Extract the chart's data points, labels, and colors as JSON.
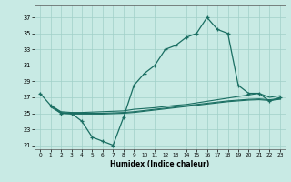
{
  "xlabel": "Humidex (Indice chaleur)",
  "xlim": [
    -0.5,
    23.5
  ],
  "ylim": [
    20.5,
    38.5
  ],
  "yticks": [
    21,
    23,
    25,
    27,
    29,
    31,
    33,
    35,
    37
  ],
  "xticks": [
    0,
    1,
    2,
    3,
    4,
    5,
    6,
    7,
    8,
    9,
    10,
    11,
    12,
    13,
    14,
    15,
    16,
    17,
    18,
    19,
    20,
    21,
    22,
    23
  ],
  "bg_color": "#c8eae4",
  "grid_color": "#a0d0c8",
  "line_color": "#1a6e62",
  "main_x": [
    0,
    1,
    2,
    3,
    4,
    5,
    6,
    7,
    8,
    9,
    10,
    11,
    12,
    13,
    14,
    15,
    16,
    17,
    18,
    19,
    20,
    21,
    22,
    23
  ],
  "main_y": [
    27.5,
    26.0,
    25.0,
    25.0,
    24.0,
    22.0,
    21.5,
    21.0,
    24.5,
    28.5,
    30.0,
    31.0,
    33.0,
    33.5,
    34.5,
    35.0,
    37.0,
    35.5,
    35.0,
    28.5,
    27.5,
    27.5,
    26.5,
    27.0
  ],
  "flat1_x": [
    1,
    2,
    3,
    4,
    5,
    6,
    7,
    8,
    9,
    10,
    11,
    12,
    13,
    14,
    15,
    16,
    17,
    18,
    19,
    20,
    21,
    22,
    23
  ],
  "flat1_y": [
    26.0,
    25.2,
    25.1,
    25.1,
    25.15,
    25.2,
    25.25,
    25.3,
    25.5,
    25.6,
    25.7,
    25.85,
    26.0,
    26.1,
    26.3,
    26.5,
    26.7,
    26.9,
    27.1,
    27.3,
    27.5,
    27.0,
    27.2
  ],
  "flat2_x": [
    1,
    2,
    3,
    4,
    5,
    6,
    7,
    8,
    9,
    10,
    11,
    12,
    13,
    14,
    15,
    16,
    17,
    18,
    19,
    20,
    21,
    22,
    23
  ],
  "flat2_y": [
    26.0,
    25.1,
    25.0,
    25.0,
    25.0,
    25.0,
    25.05,
    25.1,
    25.2,
    25.35,
    25.5,
    25.65,
    25.8,
    25.95,
    26.1,
    26.25,
    26.4,
    26.55,
    26.65,
    26.75,
    26.8,
    26.7,
    26.85
  ],
  "flat3_x": [
    1,
    2,
    3,
    4,
    5,
    6,
    7,
    8,
    9,
    10,
    11,
    12,
    13,
    14,
    15,
    16,
    17,
    18,
    19,
    20,
    21,
    22,
    23
  ],
  "flat3_y": [
    25.8,
    25.0,
    24.9,
    24.9,
    24.9,
    24.9,
    24.95,
    25.0,
    25.1,
    25.25,
    25.4,
    25.55,
    25.7,
    25.85,
    26.0,
    26.15,
    26.3,
    26.45,
    26.55,
    26.65,
    26.7,
    26.6,
    26.75
  ]
}
